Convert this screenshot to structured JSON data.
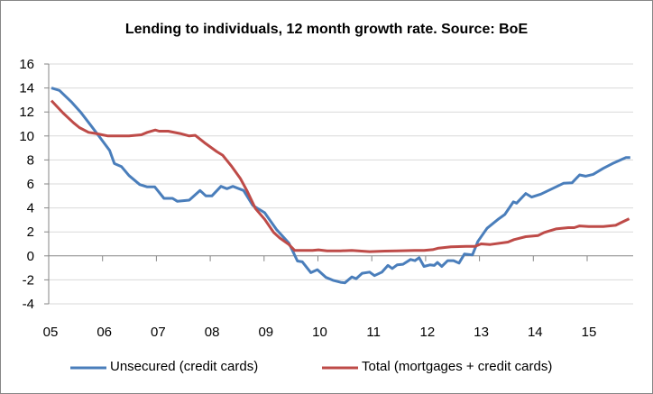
{
  "chart_data": {
    "type": "line",
    "title": "Lending to individuals, 12 month growth rate. Source: BoE",
    "xlabel": "",
    "ylabel": "",
    "xlim": [
      2005,
      2015.85
    ],
    "ylim": [
      -4,
      16
    ],
    "yticks": [
      "16",
      "14",
      "12",
      "10",
      "8",
      "6",
      "4",
      "2",
      "0",
      "-2",
      "-4"
    ],
    "xticks": [
      "05",
      "06",
      "07",
      "08",
      "09",
      "10",
      "11",
      "12",
      "13",
      "14",
      "15"
    ],
    "grid": true,
    "legend": "bottom",
    "series": [
      {
        "name": "Unsecured (credit cards)",
        "color": "#4a7ebb",
        "x": [
          2005.05,
          2005.2,
          2005.43,
          2005.6,
          2005.77,
          2005.94,
          2006.13,
          2006.22,
          2006.35,
          2006.49,
          2006.69,
          2006.83,
          2006.97,
          2007.14,
          2007.3,
          2007.39,
          2007.61,
          2007.81,
          2007.92,
          2008.03,
          2008.2,
          2008.31,
          2008.42,
          2008.62,
          2008.79,
          2009.01,
          2009.23,
          2009.46,
          2009.62,
          2009.71,
          2009.87,
          2009.99,
          2010.15,
          2010.29,
          2010.42,
          2010.5,
          2010.63,
          2010.71,
          2010.82,
          2010.96,
          2011.05,
          2011.19,
          2011.3,
          2011.38,
          2011.47,
          2011.58,
          2011.72,
          2011.8,
          2011.88,
          2011.97,
          2012.08,
          2012.16,
          2012.22,
          2012.3,
          2012.41,
          2012.52,
          2012.62,
          2012.72,
          2012.87,
          2012.97,
          2013.14,
          2013.36,
          2013.47,
          2013.63,
          2013.69,
          2013.86,
          2013.97,
          2014.14,
          2014.42,
          2014.56,
          2014.72,
          2014.86,
          2014.97,
          2015.11,
          2015.3,
          2015.47,
          2015.72,
          2015.8
        ],
        "y": [
          14.0,
          13.8,
          12.8,
          11.95,
          10.95,
          9.95,
          8.8,
          7.7,
          7.45,
          6.7,
          5.95,
          5.75,
          5.75,
          4.8,
          4.8,
          4.55,
          4.65,
          5.45,
          5.0,
          5.0,
          5.8,
          5.6,
          5.8,
          5.45,
          4.2,
          3.6,
          2.2,
          1.07,
          -0.43,
          -0.5,
          -1.4,
          -1.15,
          -1.8,
          -2.05,
          -2.2,
          -2.25,
          -1.75,
          -1.9,
          -1.45,
          -1.35,
          -1.65,
          -1.35,
          -0.8,
          -1.05,
          -0.75,
          -0.7,
          -0.3,
          -0.4,
          -0.15,
          -0.88,
          -0.75,
          -0.8,
          -0.55,
          -0.88,
          -0.4,
          -0.4,
          -0.6,
          0.15,
          0.08,
          1.2,
          2.3,
          3.1,
          3.45,
          4.5,
          4.4,
          5.2,
          4.9,
          5.15,
          5.75,
          6.05,
          6.1,
          6.75,
          6.65,
          6.8,
          7.3,
          7.7,
          8.2,
          8.2
        ]
      },
      {
        "name": "Total (mortgages + credit cards)",
        "color": "#be4b48",
        "x": [
          2005.05,
          2005.27,
          2005.46,
          2005.57,
          2005.74,
          2005.88,
          2006.1,
          2006.49,
          2006.72,
          2006.83,
          2006.98,
          2007.05,
          2007.22,
          2007.44,
          2007.61,
          2007.72,
          2007.89,
          2008.12,
          2008.23,
          2008.4,
          2008.56,
          2008.68,
          2008.84,
          2009.01,
          2009.18,
          2009.29,
          2009.46,
          2009.57,
          2009.9,
          2010.01,
          2010.17,
          2010.42,
          2010.63,
          2010.96,
          2011.24,
          2011.47,
          2011.8,
          2011.97,
          2012.13,
          2012.24,
          2012.47,
          2012.75,
          2012.92,
          2013.03,
          2013.2,
          2013.53,
          2013.64,
          2013.86,
          2014.09,
          2014.2,
          2014.42,
          2014.65,
          2014.76,
          2014.86,
          2015.03,
          2015.3,
          2015.53,
          2015.64,
          2015.78
        ],
        "y": [
          12.95,
          11.9,
          11.1,
          10.7,
          10.3,
          10.2,
          10.0,
          10.0,
          10.1,
          10.3,
          10.5,
          10.4,
          10.4,
          10.2,
          10.0,
          10.05,
          9.45,
          8.7,
          8.4,
          7.45,
          6.45,
          5.45,
          3.95,
          3.05,
          1.95,
          1.5,
          0.95,
          0.45,
          0.45,
          0.5,
          0.42,
          0.42,
          0.45,
          0.35,
          0.4,
          0.42,
          0.45,
          0.45,
          0.52,
          0.65,
          0.75,
          0.8,
          0.8,
          1.0,
          0.95,
          1.15,
          1.35,
          1.6,
          1.7,
          1.95,
          2.25,
          2.35,
          2.35,
          2.5,
          2.45,
          2.45,
          2.55,
          2.8,
          3.1
        ]
      }
    ]
  }
}
